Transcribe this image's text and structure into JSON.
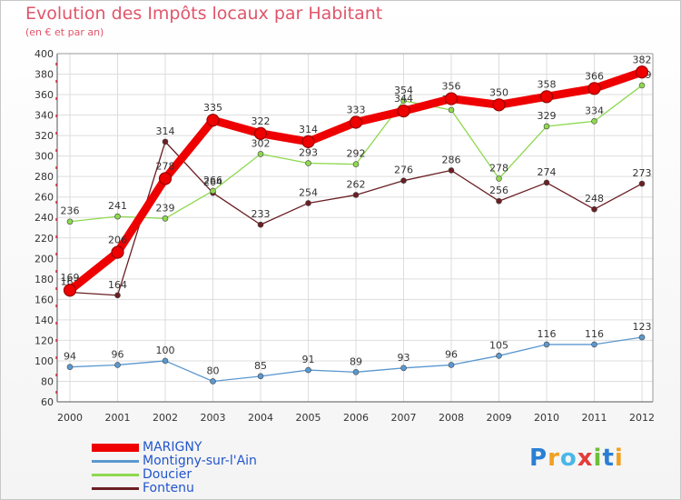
{
  "title": "Evolution des Impôts locaux par Habitant",
  "subtitle": "(en € et par an)",
  "logo_text": "Proxiti",
  "chart_data": {
    "type": "line",
    "title": "Evolution des Impôts locaux par Habitant",
    "ylabel": "(en € et par an)",
    "xlabel": "",
    "ylim": [
      60,
      400
    ],
    "yticks": [
      60,
      80,
      100,
      120,
      140,
      160,
      180,
      200,
      220,
      240,
      260,
      280,
      300,
      320,
      340,
      360,
      380,
      400
    ],
    "x": [
      "2000",
      "2001",
      "2002",
      "2003",
      "2004",
      "2005",
      "2006",
      "2007",
      "2008",
      "2009",
      "2010",
      "2011",
      "2012"
    ],
    "series": [
      {
        "name": "Fontenu",
        "color": "#6b1f24",
        "values": [
          167,
          164,
          314,
          264,
          233,
          254,
          262,
          276,
          286,
          256,
          274,
          248,
          273
        ]
      },
      {
        "name": "Doucier",
        "color": "#8ed84e",
        "values": [
          236,
          241,
          239,
          266,
          302,
          293,
          292,
          354,
          345,
          278,
          329,
          334,
          369
        ]
      },
      {
        "name": "Montigny-sur-l'Ain",
        "color": "#5b98cf",
        "values": [
          94,
          96,
          100,
          80,
          85,
          91,
          89,
          93,
          96,
          105,
          116,
          116,
          123
        ]
      },
      {
        "name": "MARIGNY",
        "color": "#ee0000",
        "values": [
          169,
          206,
          278,
          335,
          322,
          314,
          333,
          344,
          356,
          350,
          358,
          366,
          382
        ]
      }
    ],
    "legend": [
      "MARIGNY",
      "Montigny-sur-l'Ain",
      "Doucier",
      "Fontenu"
    ],
    "legend_position": "bottom-left"
  }
}
